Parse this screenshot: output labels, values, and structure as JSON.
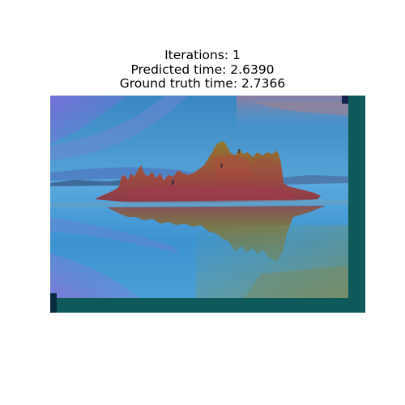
{
  "figure": {
    "title_lines": [
      "Iterations: 1",
      "Predicted time: 2.6390",
      "Ground truth time: 2.7366"
    ],
    "image_subject": "lake-tufa-island-with-heatmap-overlay"
  },
  "colors": {
    "page_background": "#ffffff",
    "border_teal": "#0e5a5a",
    "sky_blue": "#3f8fc8",
    "water_blue": "#4a9ad6",
    "overlay_purple": "#7a6ad8",
    "island_red": "#9a3c4a",
    "island_olive": "#8a7a30",
    "reflection_olive": "#7d7438",
    "mountain_blue": "#3a5a8a"
  }
}
